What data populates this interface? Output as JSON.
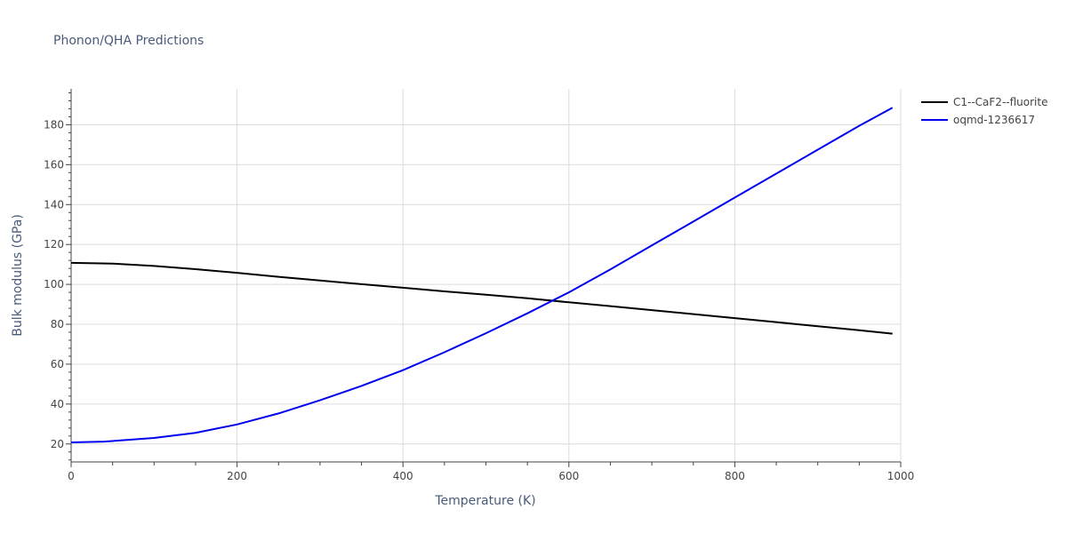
{
  "chart_data": {
    "type": "line",
    "title": "Phonon/QHA Predictions",
    "xlabel": "Temperature (K)",
    "ylabel": "Bulk modulus (GPa)",
    "xlim": [
      0,
      1000
    ],
    "ylim": [
      11,
      198
    ],
    "x_ticks": [
      0,
      200,
      400,
      600,
      800,
      1000
    ],
    "y_ticks": [
      20,
      40,
      60,
      80,
      100,
      120,
      140,
      160,
      180
    ],
    "grid": true,
    "legend_position": "top-right",
    "series": [
      {
        "name": "C1--CaF2--fluorite",
        "color": "#000000",
        "x": [
          0,
          50,
          100,
          150,
          200,
          250,
          300,
          350,
          400,
          450,
          500,
          550,
          600,
          650,
          700,
          750,
          800,
          850,
          900,
          950,
          990
        ],
        "y": [
          110.8,
          110.4,
          109.2,
          107.6,
          105.8,
          103.8,
          101.9,
          100.1,
          98.3,
          96.5,
          94.8,
          93.0,
          91.0,
          89.1,
          87.1,
          85.1,
          83.1,
          81.1,
          79.0,
          77.0,
          75.3
        ]
      },
      {
        "name": "oqmd-1236617",
        "color": "#0000ee",
        "x": [
          0,
          40,
          100,
          150,
          200,
          250,
          300,
          350,
          400,
          450,
          500,
          550,
          600,
          650,
          700,
          750,
          800,
          850,
          900,
          950,
          990
        ],
        "y": [
          20.8,
          21.2,
          23.0,
          25.6,
          29.8,
          35.3,
          41.9,
          49.1,
          57.0,
          66.0,
          75.5,
          85.5,
          96.0,
          107.5,
          119.5,
          131.5,
          143.5,
          155.5,
          167.5,
          179.5,
          188.5
        ]
      }
    ]
  }
}
